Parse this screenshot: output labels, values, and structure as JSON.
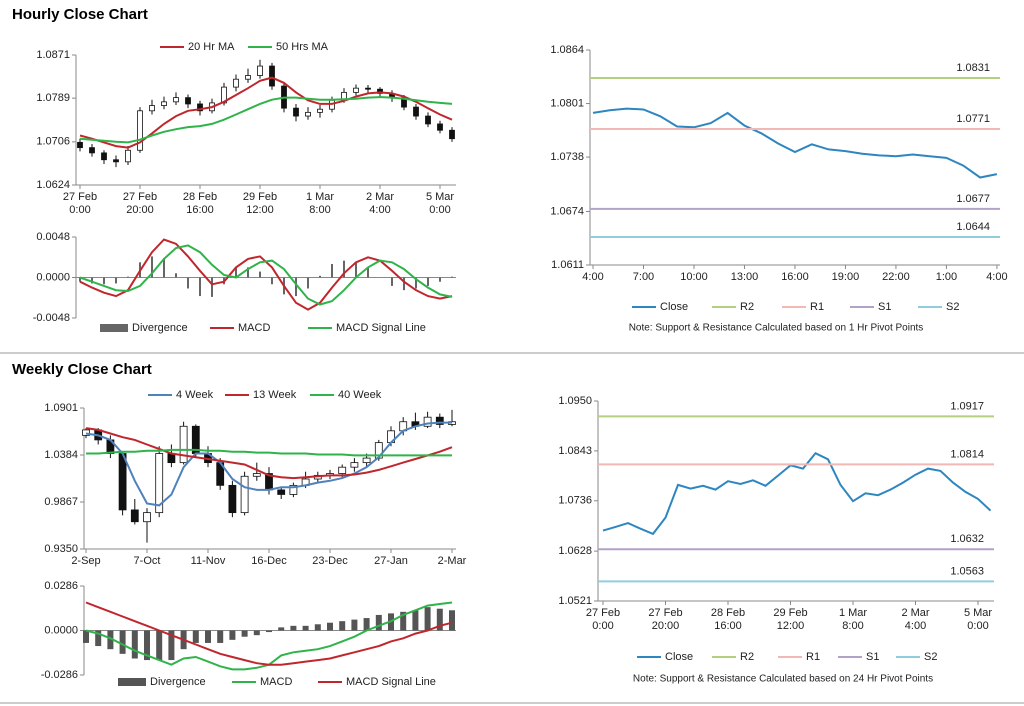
{
  "chart_data": [
    {
      "type": "candlestick",
      "title": "Hourly Close Chart",
      "categories": [
        "27 Feb\n0:00",
        null,
        null,
        null,
        null,
        "27 Feb\n20:00",
        null,
        null,
        null,
        null,
        "28 Feb\n16:00",
        null,
        null,
        null,
        null,
        "29 Feb\n12:00",
        null,
        null,
        null,
        null,
        "1 Mar\n8:00",
        null,
        null,
        null,
        null,
        "2 Mar\n4:00",
        null,
        null,
        null,
        null,
        "5 Mar\n0:00",
        null
      ],
      "candles": {
        "open": [
          1.0705,
          1.0695,
          1.0685,
          1.0672,
          1.0668,
          1.069,
          1.0765,
          1.0775,
          1.0782,
          1.079,
          1.0778,
          1.0765,
          1.078,
          1.081,
          1.0825,
          1.0832,
          1.085,
          1.0812,
          1.077,
          1.0755,
          1.0762,
          1.0768,
          1.0785,
          1.08,
          1.0808,
          1.0806,
          1.0798,
          1.079,
          1.0772,
          1.0755,
          1.074,
          1.0728
        ],
        "high": [
          1.0712,
          1.0702,
          1.069,
          1.068,
          1.0698,
          1.0772,
          1.0786,
          1.0792,
          1.08,
          1.0796,
          1.0784,
          1.0788,
          1.0818,
          1.0834,
          1.0845,
          1.0862,
          1.0856,
          1.0818,
          1.0778,
          1.0772,
          1.0776,
          1.0792,
          1.0808,
          1.0815,
          1.0814,
          1.081,
          1.0804,
          1.0795,
          1.0778,
          1.0762,
          1.0746,
          1.0734
        ],
        "low": [
          1.0688,
          1.0678,
          1.0664,
          1.0658,
          1.0662,
          1.0685,
          1.0758,
          1.0768,
          1.0776,
          1.077,
          1.0756,
          1.076,
          1.0775,
          1.0802,
          1.0818,
          1.0826,
          1.0805,
          1.0762,
          1.0745,
          1.0748,
          1.0752,
          1.0762,
          1.078,
          1.0794,
          1.0798,
          1.079,
          1.0782,
          1.0766,
          1.0748,
          1.0734,
          1.0722,
          1.0706
        ],
        "close": [
          1.0695,
          1.0685,
          1.0672,
          1.0668,
          1.069,
          1.0765,
          1.0775,
          1.0782,
          1.079,
          1.0778,
          1.0765,
          1.078,
          1.081,
          1.0825,
          1.0832,
          1.085,
          1.0812,
          1.077,
          1.0755,
          1.0762,
          1.0768,
          1.0785,
          1.08,
          1.0808,
          1.0806,
          1.0798,
          1.079,
          1.0772,
          1.0755,
          1.074,
          1.0728,
          1.0712
        ]
      },
      "series": [
        {
          "name": "20 Hr MA",
          "color": "#c0272d",
          "values": [
            1.0718,
            1.0712,
            1.0705,
            1.0698,
            1.0695,
            1.0705,
            1.0722,
            1.074,
            1.0755,
            1.0765,
            1.0768,
            1.0772,
            1.0782,
            1.0795,
            1.0808,
            1.0822,
            1.0828,
            1.0818,
            1.08,
            1.0785,
            1.0778,
            1.0778,
            1.0784,
            1.0792,
            1.0798,
            1.08,
            1.0798,
            1.0792,
            1.0782,
            1.077,
            1.0758,
            1.0748
          ]
        },
        {
          "name": "50 Hrs MA",
          "color": "#2fb34a",
          "values": [
            1.0712,
            1.071,
            1.0708,
            1.0706,
            1.0705,
            1.071,
            1.0718,
            1.0725,
            1.073,
            1.0734,
            1.0736,
            1.074,
            1.0748,
            1.0758,
            1.0768,
            1.0778,
            1.0786,
            1.079,
            1.079,
            1.0788,
            1.0786,
            1.0786,
            1.0787,
            1.0788,
            1.079,
            1.0791,
            1.079,
            1.0788,
            1.0785,
            1.0782,
            1.078,
            1.0778
          ]
        }
      ],
      "ylim": [
        1.0624,
        1.0871
      ],
      "yticks": [
        1.0624,
        1.0706,
        1.0789,
        1.0871
      ]
    },
    {
      "type": "combo",
      "series": [
        {
          "name": "Divergence",
          "type": "bar",
          "color": "#666666",
          "values": [
            -0.0005,
            -0.0007,
            -0.0008,
            -0.0007,
            0.0001,
            0.0018,
            0.0025,
            0.0023,
            0.0005,
            -0.0013,
            -0.0022,
            -0.0023,
            -0.0008,
            0.0012,
            0.0012,
            0.0007,
            -0.0008,
            -0.002,
            -0.0022,
            -0.0013,
            0.0002,
            0.0016,
            0.002,
            0.0018,
            0.0012,
            0,
            -0.001,
            -0.0015,
            -0.0013,
            -0.001,
            -0.0005,
            0.0001
          ]
        },
        {
          "name": "MACD",
          "type": "line",
          "color": "#c0272d",
          "values": [
            -0.0005,
            -0.0012,
            -0.0018,
            -0.0022,
            -0.0015,
            0.0008,
            0.003,
            0.0045,
            0.004,
            0.0025,
            0.0008,
            -0.0008,
            -0.0005,
            0.0012,
            0.0022,
            0.0025,
            0.0012,
            -0.001,
            -0.003,
            -0.0038,
            -0.003,
            -0.0012,
            0.0005,
            0.0018,
            0.0024,
            0.002,
            0.0008,
            -0.0005,
            -0.0015,
            -0.0022,
            -0.0025,
            -0.0022
          ]
        },
        {
          "name": "MACD Signal Line",
          "type": "line",
          "color": "#2fb34a",
          "values": [
            0,
            -0.0005,
            -0.001,
            -0.0015,
            -0.0016,
            -0.001,
            0.0005,
            0.0022,
            0.0035,
            0.0038,
            0.003,
            0.0015,
            0.0003,
            0,
            0.001,
            0.0018,
            0.002,
            0.001,
            -0.0008,
            -0.0025,
            -0.0032,
            -0.0028,
            -0.0015,
            0,
            0.0012,
            0.002,
            0.0018,
            0.001,
            -0.0002,
            -0.0012,
            -0.002,
            -0.0023
          ]
        }
      ],
      "ylim": [
        -0.0048,
        0.0048
      ],
      "yticks": [
        -0.0048,
        {
          "value": 0,
          "label": "0.0000"
        },
        0.0048
      ]
    },
    {
      "type": "line",
      "categories": [
        "4:00",
        null,
        null,
        "7:00",
        null,
        null,
        "10:00",
        null,
        null,
        "13:00",
        null,
        null,
        "16:00",
        null,
        null,
        "19:00",
        null,
        null,
        "22:00",
        null,
        null,
        "1:00",
        null,
        null,
        "4:00"
      ],
      "series": [
        {
          "name": "Close",
          "color": "#2e86c1",
          "values": [
            1.079,
            1.0793,
            1.0795,
            1.0794,
            1.0786,
            1.0774,
            1.0773,
            1.0778,
            1.079,
            1.0775,
            1.0766,
            1.0754,
            1.0744,
            1.0753,
            1.0747,
            1.0745,
            1.0742,
            1.074,
            1.0739,
            1.0741,
            1.0739,
            1.0737,
            1.0728,
            1.0714,
            1.0718
          ]
        },
        {
          "name": "R2",
          "color": "#b5cf80",
          "value": 1.0831
        },
        {
          "name": "R1",
          "color": "#f2b8b5",
          "value": 1.0771
        },
        {
          "name": "S1",
          "color": "#b3a2c7",
          "value": 1.0677
        },
        {
          "name": "S2",
          "color": "#92cddc",
          "value": 1.0644
        }
      ],
      "ylim": [
        1.0611,
        1.0864
      ],
      "yticks": [
        1.0611,
        1.0674,
        1.0738,
        1.0801,
        1.0864
      ],
      "note": "Note: Support & Resistance Calculated based on 1 Hr Pivot Points"
    },
    {
      "type": "candlestick",
      "title": "Weekly Close Chart",
      "categories": [
        "2-Sep",
        null,
        null,
        null,
        null,
        "7-Oct",
        null,
        null,
        null,
        null,
        "11-Nov",
        null,
        null,
        null,
        null,
        "16-Dec",
        null,
        null,
        null,
        null,
        "23-Dec",
        null,
        null,
        null,
        null,
        "27-Jan",
        null,
        null,
        null,
        null,
        "2-Mar"
      ],
      "candles": {
        "open": [
          1.06,
          1.066,
          1.055,
          1.04,
          0.978,
          0.965,
          0.975,
          1.04,
          1.03,
          1.07,
          1.04,
          1.03,
          1.005,
          0.975,
          1.015,
          1.018,
          1.0,
          0.995,
          1.005,
          1.012,
          1.016,
          1.018,
          1.025,
          1.03,
          1.035,
          1.052,
          1.065,
          1.075,
          1.07,
          1.08,
          1.072
        ],
        "high": [
          1.068,
          1.068,
          1.06,
          1.042,
          0.99,
          0.98,
          1.048,
          1.05,
          1.075,
          1.072,
          1.048,
          1.035,
          1.01,
          1.02,
          1.03,
          1.025,
          1.003,
          1.008,
          1.02,
          1.02,
          1.022,
          1.028,
          1.035,
          1.04,
          1.055,
          1.07,
          1.08,
          1.085,
          1.086,
          1.084,
          1.088
        ],
        "low": [
          1.057,
          1.05,
          1.035,
          0.972,
          0.962,
          0.942,
          0.97,
          1.025,
          1.028,
          1.035,
          1.025,
          1.0,
          0.97,
          0.972,
          1.01,
          0.995,
          0.99,
          0.992,
          1.002,
          1.008,
          1.012,
          1.014,
          1.02,
          1.025,
          1.032,
          1.048,
          1.06,
          1.066,
          1.068,
          1.068,
          1.07
        ],
        "close": [
          1.066,
          1.055,
          1.04,
          0.978,
          0.965,
          0.975,
          1.04,
          1.03,
          1.07,
          1.04,
          1.03,
          1.005,
          0.975,
          1.015,
          1.018,
          1.0,
          0.995,
          1.005,
          1.012,
          1.016,
          1.018,
          1.025,
          1.03,
          1.035,
          1.052,
          1.065,
          1.075,
          1.07,
          1.08,
          1.072,
          1.075
        ]
      },
      "series": [
        {
          "name": "4 Week",
          "color": "#4f81bd",
          "values": [
            1.062,
            1.06,
            1.055,
            1.04,
            1.01,
            0.985,
            0.983,
            0.995,
            1.025,
            1.04,
            1.04,
            1.03,
            1.012,
            1.003,
            1.0,
            1.0,
            1.003,
            1.003,
            1.005,
            1.008,
            1.01,
            1.013,
            1.018,
            1.025,
            1.036,
            1.052,
            1.065,
            1.07,
            1.073,
            1.074,
            1.074
          ]
        },
        {
          "name": "13 Week",
          "color": "#c0272d",
          "values": [
            1.068,
            1.066,
            1.062,
            1.058,
            1.055,
            1.05,
            1.045,
            1.04,
            1.038,
            1.036,
            1.034,
            1.032,
            1.03,
            1.028,
            1.022,
            1.016,
            1.014,
            1.013,
            1.014,
            1.015,
            1.016,
            1.016,
            1.017,
            1.019,
            1.022,
            1.026,
            1.03,
            1.034,
            1.038,
            1.042,
            1.047
          ]
        },
        {
          "name": "40 Week",
          "color": "#2fb34a",
          "values": [
            1.04,
            1.04,
            1.041,
            1.042,
            1.042,
            1.043,
            1.043,
            1.044,
            1.044,
            1.044,
            1.043,
            1.043,
            1.042,
            1.042,
            1.041,
            1.041,
            1.04,
            1.04,
            1.04,
            1.039,
            1.039,
            1.039,
            1.038,
            1.038,
            1.038,
            1.038,
            1.038,
            1.038,
            1.038,
            1.038,
            1.038
          ]
        }
      ],
      "ylim": [
        0.935,
        1.0901
      ],
      "yticks": [
        {
          "value": 0.935,
          "label": "0.9350"
        },
        0.9867,
        1.0384,
        1.0901
      ]
    },
    {
      "type": "combo",
      "series": [
        {
          "name": "Divergence",
          "type": "bar",
          "color": "#555555",
          "values": [
            -0.008,
            -0.01,
            -0.012,
            -0.015,
            -0.018,
            -0.019,
            -0.019,
            -0.019,
            -0.012,
            -0.008,
            -0.008,
            -0.008,
            -0.006,
            -0.004,
            -0.003,
            -0.001,
            0.002,
            0.003,
            0.003,
            0.004,
            0.005,
            0.006,
            0.007,
            0.008,
            0.01,
            0.011,
            0.012,
            0.013,
            0.015,
            0.014,
            0.013
          ]
        },
        {
          "name": "MACD",
          "type": "line",
          "color": "#2fb34a",
          "values": [
            0,
            -0.002,
            -0.005,
            -0.009,
            -0.013,
            -0.016,
            -0.019,
            -0.022,
            -0.018,
            -0.017,
            -0.02,
            -0.023,
            -0.025,
            -0.025,
            -0.024,
            -0.022,
            -0.016,
            -0.014,
            -0.013,
            -0.012,
            -0.01,
            -0.007,
            -0.004,
            0,
            0.003,
            0.006,
            0.01,
            0.013,
            0.016,
            0.017,
            0.018
          ]
        },
        {
          "name": "MACD Signal Line",
          "type": "line",
          "color": "#c0272d",
          "values": [
            0.018,
            0.015,
            0.012,
            0.009,
            0.006,
            0.003,
            0,
            -0.003,
            -0.006,
            -0.009,
            -0.012,
            -0.015,
            -0.017,
            -0.019,
            -0.021,
            -0.022,
            -0.022,
            -0.021,
            -0.02,
            -0.019,
            -0.018,
            -0.016,
            -0.014,
            -0.012,
            -0.01,
            -0.007,
            -0.005,
            -0.002,
            0,
            0.003,
            0.005
          ]
        }
      ],
      "ylim": [
        -0.0286,
        0.0286
      ],
      "yticks": [
        -0.0286,
        {
          "value": 0,
          "label": "0.0000"
        },
        0.0286
      ]
    },
    {
      "type": "line",
      "categories": [
        "27 Feb\n0:00",
        null,
        null,
        null,
        null,
        "27 Feb\n20:00",
        null,
        null,
        null,
        null,
        "28 Feb\n16:00",
        null,
        null,
        null,
        null,
        "29 Feb\n12:00",
        null,
        null,
        null,
        null,
        "1 Mar\n8:00",
        null,
        null,
        null,
        null,
        "2 Mar\n4:00",
        null,
        null,
        null,
        null,
        "5 Mar\n0:00",
        null
      ],
      "series": [
        {
          "name": "Close",
          "color": "#2e86c1",
          "values": [
            1.0672,
            1.068,
            1.0688,
            1.0676,
            1.0665,
            1.07,
            1.077,
            1.0762,
            1.0768,
            1.076,
            1.0778,
            1.0772,
            1.078,
            1.0768,
            1.079,
            1.0812,
            1.0805,
            1.0838,
            1.0825,
            1.077,
            1.0735,
            1.0752,
            1.0748,
            1.076,
            1.0775,
            1.0792,
            1.0805,
            1.08,
            1.0775,
            1.0755,
            1.074,
            1.0715
          ]
        },
        {
          "name": "R2",
          "color": "#b5cf80",
          "value": 1.0917
        },
        {
          "name": "R1",
          "color": "#f2b8b5",
          "value": 1.0814
        },
        {
          "name": "S1",
          "color": "#b3a2c7",
          "value": 1.0632
        },
        {
          "name": "S2",
          "color": "#92cddc",
          "value": 1.0563
        }
      ],
      "ylim": [
        1.0521,
        1.095
      ],
      "yticks": [
        1.0521,
        1.0628,
        1.0736,
        1.0843,
        {
          "value": 1.095,
          "label": "1.0950"
        }
      ],
      "note": "Note: Support & Resistance Calculated based on 24 Hr Pivot Points"
    }
  ]
}
